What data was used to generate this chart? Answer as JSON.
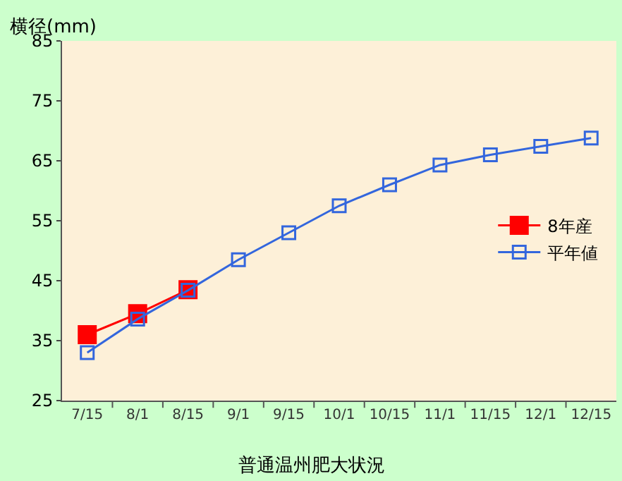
{
  "chart_data": {
    "type": "line",
    "xlabel": "普通温州肥大状況",
    "ylabel": "横径(mm)",
    "categories": [
      "7/15",
      "8/1",
      "8/15",
      "9/1",
      "9/15",
      "10/1",
      "10/15",
      "11/1",
      "11/15",
      "12/1",
      "12/15"
    ],
    "series": [
      {
        "name": "8年産",
        "color": "#ff0000",
        "marker": "square",
        "values": [
          36,
          39.5,
          43.5,
          null,
          null,
          null,
          null,
          null,
          null,
          null,
          null
        ]
      },
      {
        "name": "平年値",
        "color": "#3366dd",
        "marker": "square-open",
        "values": [
          33,
          38.6,
          43.4,
          48.5,
          53,
          57.5,
          61,
          64.3,
          66,
          67.4,
          68.8
        ]
      }
    ],
    "ylim": [
      25,
      85
    ],
    "yticks": [
      25,
      35,
      45,
      55,
      65,
      75,
      85
    ],
    "grid": false,
    "legend": "right",
    "line_style": "solid"
  }
}
